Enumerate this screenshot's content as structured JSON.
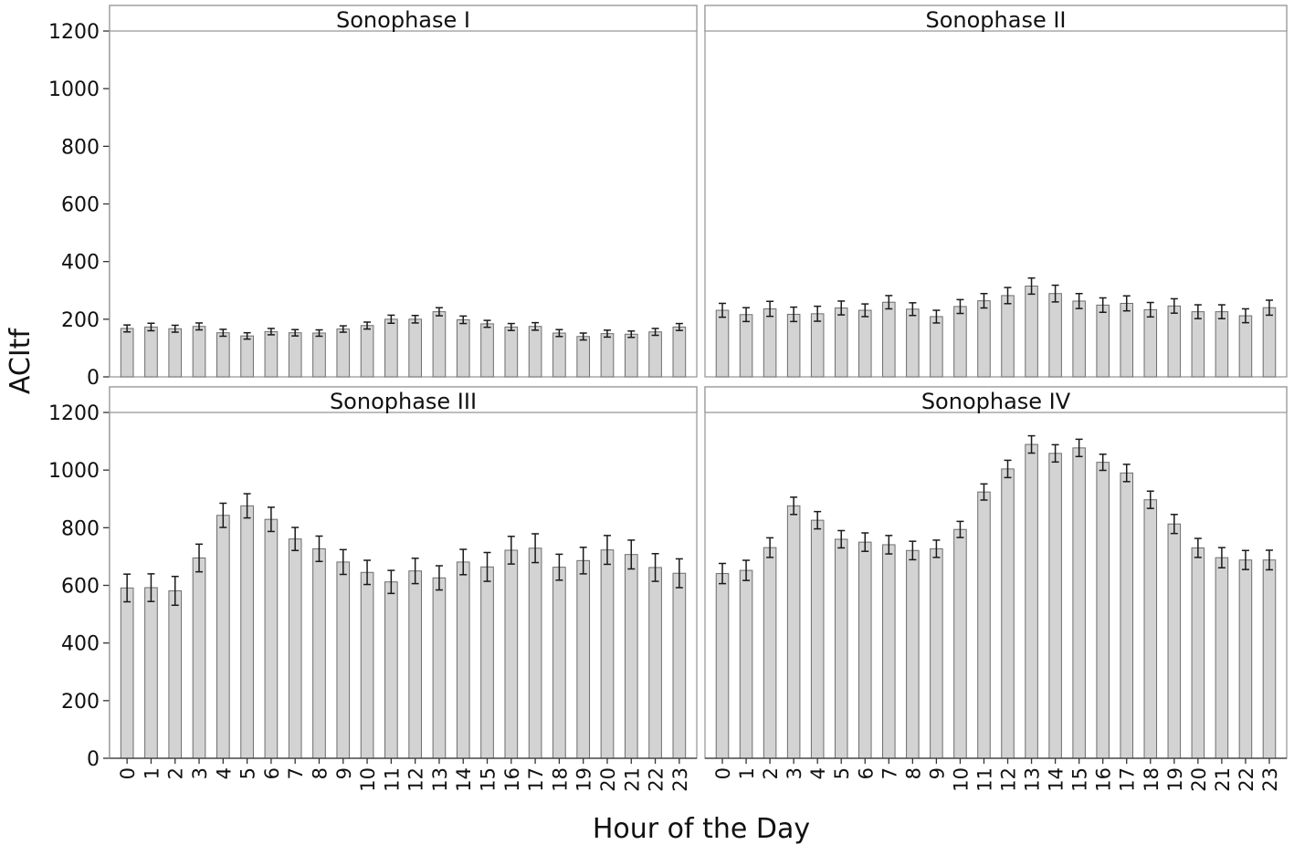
{
  "chart_data": {
    "type": "bar",
    "ylabel": "ACItf",
    "xlabel": "Hour of the Day",
    "ylim": [
      0,
      1200
    ],
    "yticks": [
      0,
      200,
      400,
      600,
      800,
      1000,
      1200
    ],
    "categories": [
      "0",
      "1",
      "2",
      "3",
      "4",
      "5",
      "6",
      "7",
      "8",
      "9",
      "10",
      "11",
      "12",
      "13",
      "14",
      "15",
      "16",
      "17",
      "18",
      "19",
      "20",
      "21",
      "22",
      "23"
    ],
    "error_bars": true,
    "bar_color": "#d3d3d3",
    "panels": [
      {
        "title": "Sonophase I",
        "values": [
          168,
          173,
          167,
          175,
          153,
          142,
          157,
          153,
          152,
          166,
          178,
          200,
          200,
          226,
          198,
          184,
          173,
          175,
          152,
          140,
          150,
          148,
          156,
          173
        ],
        "errors": [
          12,
          13,
          12,
          12,
          12,
          11,
          11,
          11,
          11,
          11,
          12,
          14,
          13,
          14,
          13,
          12,
          12,
          13,
          12,
          12,
          12,
          11,
          12,
          12
        ]
      },
      {
        "title": "Sonophase II",
        "values": [
          231,
          216,
          236,
          217,
          219,
          239,
          231,
          259,
          235,
          209,
          244,
          264,
          282,
          315,
          289,
          263,
          249,
          255,
          233,
          246,
          226,
          226,
          212,
          240
        ],
        "errors": [
          24,
          24,
          26,
          25,
          26,
          24,
          22,
          23,
          22,
          22,
          24,
          25,
          28,
          28,
          29,
          26,
          25,
          26,
          25,
          25,
          24,
          24,
          24,
          26
        ]
      },
      {
        "title": "Sonophase III",
        "values": [
          591,
          592,
          581,
          695,
          843,
          876,
          829,
          761,
          727,
          681,
          645,
          612,
          650,
          626,
          681,
          664,
          722,
          729,
          663,
          686,
          723,
          707,
          662,
          642
        ],
        "errors": [
          48,
          48,
          50,
          48,
          42,
          42,
          42,
          40,
          44,
          43,
          42,
          40,
          44,
          42,
          44,
          50,
          48,
          50,
          45,
          46,
          50,
          50,
          48,
          50
        ]
      },
      {
        "title": "Sonophase IV",
        "values": [
          641,
          652,
          731,
          876,
          826,
          760,
          750,
          741,
          721,
          727,
          794,
          924,
          1004,
          1089,
          1058,
          1077,
          1027,
          990,
          897,
          813,
          730,
          696,
          688,
          688
        ],
        "errors": [
          35,
          35,
          34,
          30,
          30,
          30,
          32,
          32,
          32,
          30,
          28,
          28,
          30,
          30,
          30,
          30,
          28,
          30,
          30,
          33,
          33,
          35,
          33,
          34
        ]
      }
    ]
  }
}
